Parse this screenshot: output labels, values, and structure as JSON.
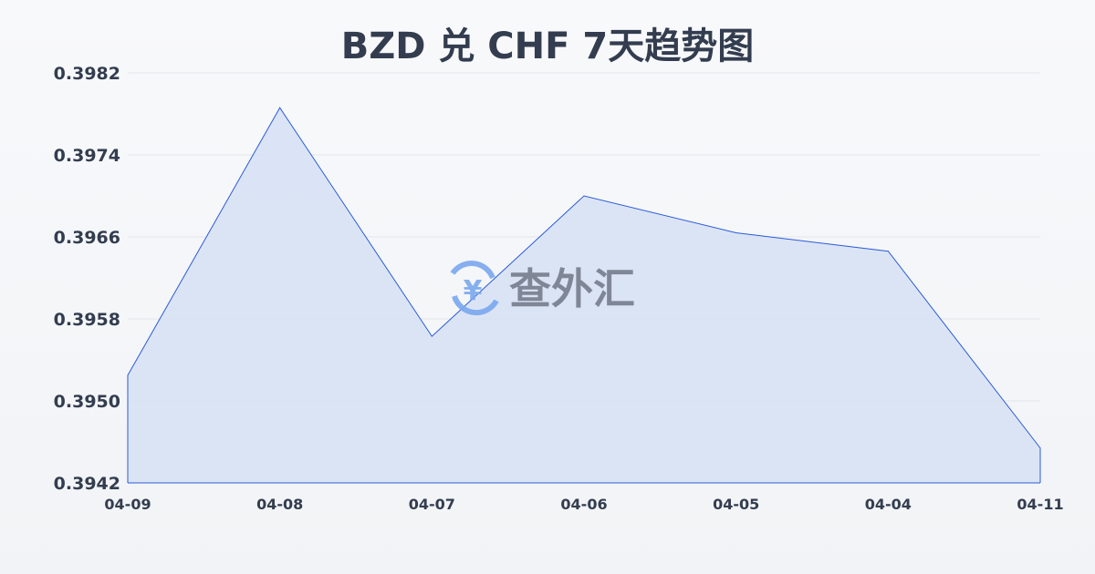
{
  "title": "BZD 兑 CHF 7天趋势图",
  "watermark": {
    "text": "查外汇",
    "icon": "yen-exchange-icon",
    "icon_color": "#7aa8ee",
    "text_color": "#767c8b"
  },
  "colors": {
    "line": "#2a5bd7",
    "fill": "#d6e1f5",
    "grid": "#e3e6eb",
    "text": "#333d4f"
  },
  "chart_data": {
    "type": "area",
    "title": "BZD 兑 CHF 7天趋势图",
    "categories": [
      "04-09",
      "04-08",
      "04-07",
      "04-06",
      "04-05",
      "04-04",
      "04-11"
    ],
    "values": [
      0.39525,
      0.39786,
      0.39563,
      0.397,
      0.39664,
      0.39646,
      0.39454
    ],
    "ylim": [
      0.3942,
      0.3982
    ],
    "yticks": [
      "0.3982",
      "0.3974",
      "0.3966",
      "0.3958",
      "0.3950",
      "0.3942"
    ],
    "grid": true,
    "legend": "none"
  }
}
